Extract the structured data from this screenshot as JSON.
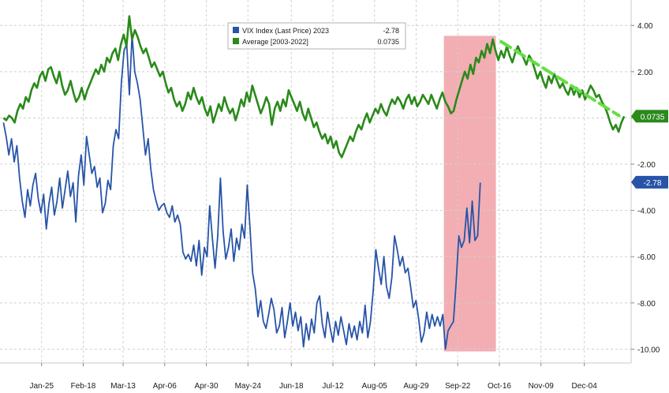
{
  "chart_data": {
    "type": "line",
    "grid": true,
    "x_ticks": [
      "Jan-25",
      "Feb-18",
      "Mar-13",
      "Apr-06",
      "Apr-30",
      "May-24",
      "Jun-18",
      "Jul-12",
      "Aug-05",
      "Aug-29",
      "Sep-22",
      "Oct-16",
      "Nov-09",
      "Dec-04"
    ],
    "y_ticks": [
      "4.00",
      "2.00",
      "0",
      "-2.00",
      "-4.00",
      "-6.00",
      "-8.00",
      "-10.00"
    ],
    "ylim": [
      -10.6,
      5.1
    ],
    "legend": {
      "placement": "top-center",
      "entries": [
        {
          "label": "VIX Index  (Last Price) 2023",
          "value": "-2.78",
          "color": "#2754a8"
        },
        {
          "label": "Average  [2003-2022]",
          "value": "0.0735",
          "color": "#2a8a1a"
        }
      ]
    },
    "last_value_badges": [
      {
        "text": "0.0735",
        "value": 0.0735,
        "color": "#2a8a1a"
      },
      {
        "text": "-2.78",
        "value": -2.78,
        "color": "#2754a8"
      }
    ],
    "highlight_region": {
      "x_start": "Sep-14",
      "x_end": "Oct-14",
      "color": "#f0a0a6"
    },
    "trend_line": {
      "color": "#66dd44",
      "from": {
        "x": "Oct-17",
        "y": 3.3
      },
      "to": {
        "x": "Dec-24",
        "y": 0.1
      }
    },
    "series": [
      {
        "name": "VIX Index  (Last Price) 2023",
        "color": "#2754a8",
        "x_start": "Jan-03",
        "values": [
          -0.2,
          -0.8,
          -1.6,
          -0.9,
          -1.9,
          -1.2,
          -2.6,
          -3.6,
          -4.3,
          -3.1,
          -3.8,
          -2.9,
          -2.4,
          -3.5,
          -4.1,
          -3.3,
          -4.8,
          -3.7,
          -3.0,
          -4.2,
          -3.6,
          -2.6,
          -3.9,
          -3.1,
          -2.3,
          -3.4,
          -2.8,
          -4.5,
          -2.5,
          -1.6,
          -2.9,
          -0.8,
          -1.6,
          -2.4,
          -2.1,
          -3.0,
          -2.6,
          -4.1,
          -3.7,
          -2.7,
          -3.1,
          -1.2,
          -0.5,
          -0.9,
          1.5,
          2.9,
          3.2,
          1.0,
          3.6,
          2.0,
          1.5,
          0.8,
          -0.4,
          -1.6,
          -0.9,
          -2.2,
          -3.1,
          -3.6,
          -4.0,
          -3.8,
          -3.7,
          -4.1,
          -4.3,
          -3.8,
          -4.5,
          -4.2,
          -4.6,
          -5.8,
          -6.1,
          -5.9,
          -6.2,
          -5.5,
          -6.4,
          -5.3,
          -6.8,
          -5.6,
          -6.0,
          -3.8,
          -5.2,
          -6.5,
          -5.1,
          -2.6,
          -4.9,
          -6.1,
          -5.6,
          -4.8,
          -6.2,
          -5.2,
          -5.7,
          -4.6,
          -5.2,
          -2.9,
          -4.7,
          -6.7,
          -7.4,
          -8.6,
          -7.9,
          -8.8,
          -9.1,
          -8.5,
          -7.8,
          -8.3,
          -9.3,
          -9.0,
          -8.2,
          -9.5,
          -8.8,
          -8.0,
          -9.0,
          -8.4,
          -9.2,
          -8.6,
          -9.9,
          -8.9,
          -9.6,
          -8.7,
          -9.3,
          -8.0,
          -7.7,
          -8.9,
          -9.5,
          -8.4,
          -9.1,
          -9.7,
          -8.8,
          -9.4,
          -8.6,
          -9.2,
          -9.8,
          -8.9,
          -9.5,
          -9.0,
          -9.6,
          -8.8,
          -9.3,
          -8.1,
          -9.5,
          -8.8,
          -7.5,
          -5.7,
          -6.5,
          -7.2,
          -6.0,
          -7.3,
          -7.8,
          -6.9,
          -5.1,
          -5.7,
          -6.4,
          -6.0,
          -6.7,
          -6.5,
          -7.3,
          -8.2,
          -7.9,
          -8.7,
          -9.7,
          -9.3,
          -8.4,
          -9.1,
          -8.5,
          -9.0,
          -8.6,
          -9.0,
          -8.5,
          -10.0,
          -9.2,
          -9.0,
          -8.8,
          -7.1,
          -5.1,
          -5.6,
          -5.3,
          -3.9,
          -5.4,
          -3.6,
          -5.3,
          -5.1,
          -2.8
        ]
      },
      {
        "name": "Average  [2003-2022]",
        "color": "#2a8a1a",
        "x_start": "Jan-03",
        "values": [
          0.0,
          -0.1,
          0.1,
          0.0,
          -0.2,
          0.3,
          0.6,
          0.4,
          0.9,
          0.7,
          1.2,
          1.5,
          1.3,
          1.8,
          2.0,
          1.6,
          2.1,
          2.2,
          1.8,
          1.5,
          2.0,
          1.4,
          1.0,
          1.2,
          1.6,
          1.1,
          0.7,
          0.9,
          1.3,
          0.8,
          1.2,
          1.5,
          1.8,
          2.1,
          1.9,
          2.3,
          2.0,
          2.6,
          2.4,
          2.8,
          3.0,
          2.5,
          3.2,
          3.6,
          3.1,
          4.4,
          3.4,
          3.8,
          3.5,
          3.1,
          2.8,
          3.0,
          2.6,
          2.2,
          2.4,
          2.1,
          1.8,
          2.0,
          1.5,
          1.1,
          1.3,
          0.8,
          0.5,
          0.7,
          0.3,
          0.6,
          1.1,
          0.8,
          1.3,
          0.9,
          0.6,
          0.9,
          0.4,
          0.1,
          0.5,
          -0.2,
          0.2,
          0.6,
          0.3,
          0.9,
          0.5,
          0.2,
          0.4,
          -0.1,
          0.3,
          0.8,
          0.5,
          1.1,
          0.7,
          1.4,
          1.0,
          0.6,
          0.2,
          0.5,
          0.9,
          0.6,
          -0.3,
          0.4,
          0.7,
          0.3,
          0.8,
          0.5,
          1.2,
          0.9,
          0.6,
          0.3,
          0.7,
          0.2,
          -0.1,
          0.4,
          0.0,
          -0.4,
          -0.2,
          -0.6,
          -0.9,
          -0.7,
          -1.1,
          -0.8,
          -1.3,
          -1.0,
          -1.5,
          -1.7,
          -1.4,
          -1.1,
          -0.8,
          -1.0,
          -0.6,
          -0.3,
          -0.5,
          -0.1,
          0.2,
          -0.2,
          0.1,
          0.4,
          0.2,
          0.6,
          0.3,
          0.1,
          0.5,
          0.8,
          0.6,
          0.9,
          0.7,
          0.4,
          0.8,
          1.0,
          0.6,
          0.9,
          0.5,
          0.7,
          1.0,
          0.8,
          0.6,
          1.0,
          0.7,
          0.4,
          0.8,
          1.1,
          0.7,
          0.5,
          0.2,
          0.3,
          0.8,
          1.2,
          1.6,
          2.0,
          1.7,
          2.3,
          1.9,
          2.6,
          2.4,
          2.9,
          2.6,
          3.2,
          2.8,
          3.4,
          2.9,
          2.5,
          2.9,
          2.6,
          3.1,
          2.7,
          2.4,
          2.8,
          3.1,
          2.8,
          2.6,
          2.3,
          2.7,
          2.5,
          2.1,
          1.7,
          2.0,
          1.6,
          1.3,
          1.8,
          1.5,
          1.9,
          1.6,
          1.3,
          1.5,
          1.2,
          1.0,
          1.4,
          1.0,
          1.3,
          0.9,
          1.2,
          0.8,
          1.1,
          1.4,
          1.2,
          0.9,
          1.0,
          0.7,
          0.5,
          0.2,
          -0.2,
          -0.5,
          -0.3,
          -0.6,
          -0.2,
          0.07
        ]
      }
    ]
  }
}
